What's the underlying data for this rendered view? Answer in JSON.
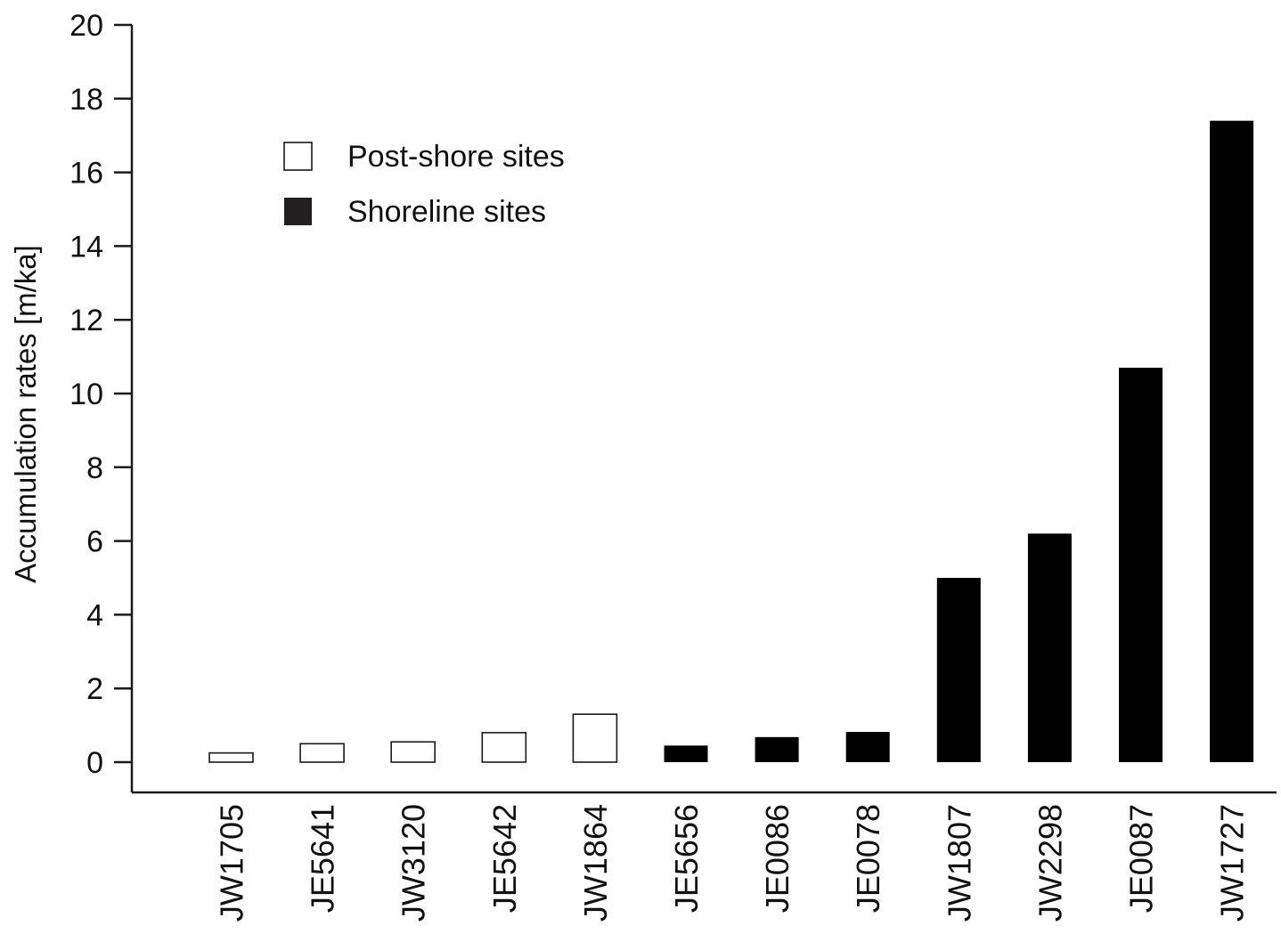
{
  "chart_data": {
    "type": "bar",
    "title": "",
    "xlabel": "",
    "ylabel": "Accumulation rates [m/ka]",
    "ylim": [
      -0.8,
      20
    ],
    "yticks": [
      0,
      2,
      4,
      6,
      8,
      10,
      12,
      14,
      16,
      18,
      20
    ],
    "categories": [
      "JW1705",
      "JE5641",
      "JW3120",
      "JE5642",
      "JW1864",
      "JE5656",
      "JE0086",
      "JE0078",
      "JW1807",
      "JW2298",
      "JE0087",
      "JW1727"
    ],
    "series": [
      {
        "name": "Post-shore sites",
        "style": "outline",
        "values": [
          0.25,
          0.5,
          0.55,
          0.8,
          1.3,
          null,
          null,
          null,
          null,
          null,
          null,
          null
        ]
      },
      {
        "name": "Shoreline sites",
        "style": "filled",
        "values": [
          null,
          null,
          null,
          null,
          null,
          0.45,
          0.68,
          0.82,
          5.0,
          6.2,
          10.7,
          17.4
        ]
      }
    ],
    "legend": {
      "placement": "top-left",
      "items": [
        {
          "label": "Post-shore sites",
          "style": "outline"
        },
        {
          "label": "Shoreline sites",
          "style": "filled"
        }
      ]
    },
    "grid": false,
    "colors": {
      "outline_fill": "#ffffff",
      "outline_stroke": "#1a1a1a",
      "filled": "#000000",
      "legend_filled": "#231f20",
      "axis": "#1a1a1a"
    }
  }
}
